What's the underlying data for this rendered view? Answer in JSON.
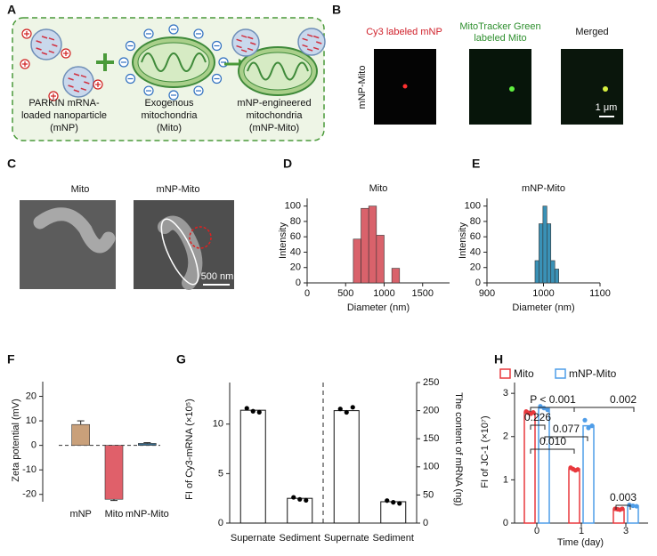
{
  "panel_labels": [
    "A",
    "B",
    "C",
    "D",
    "E",
    "F",
    "G",
    "H"
  ],
  "panel_a": {
    "nanoparticle": [
      "PARKIN mRNA-",
      "loaded nanoparticle",
      "(mNP)"
    ],
    "mitochondria": [
      "Exogenous",
      "mitochondria",
      "(Mito)"
    ],
    "engineered": [
      "mNP-engineered",
      "mitochondria",
      "(mNP-Mito)"
    ]
  },
  "panel_b": {
    "columns": [
      [
        "Cy3 labeled mNP"
      ],
      [
        "MitoTracker Green",
        "labeled Mito"
      ],
      [
        "Merged"
      ]
    ],
    "row_label": "mNP-Mito",
    "scale_bar": "1 μm"
  },
  "panel_c": {
    "columns": [
      "Mito",
      "mNP-Mito"
    ],
    "scale_bar": "500 nm"
  },
  "chart_data": [
    {
      "type": "histogram",
      "title": "Mito",
      "x_label": "Diameter (nm)",
      "y_label": "Intensity",
      "bins": [
        600,
        700,
        800,
        900,
        1000,
        1100,
        1200
      ],
      "counts": [
        57,
        97,
        100,
        62,
        0,
        19
      ],
      "color": "#d9626b",
      "xlim": [
        0,
        1850
      ],
      "xticks": [
        0,
        500,
        1000,
        1500
      ],
      "ylim": [
        0,
        110
      ],
      "yticks": [
        0,
        20,
        40,
        60,
        80,
        100
      ]
    },
    {
      "type": "histogram",
      "title": "mNP-Mito",
      "x_label": "Diameter (nm)",
      "y_label": "Intensity",
      "bins": [
        985,
        992,
        999,
        1006,
        1013,
        1020,
        1027
      ],
      "counts": [
        29,
        77,
        100,
        77,
        29,
        18
      ],
      "color": "#3a91b6",
      "xlim": [
        900,
        1100
      ],
      "xticks": [
        900,
        1000,
        1100
      ],
      "ylim": [
        0,
        110
      ],
      "yticks": [
        0,
        20,
        40,
        60,
        80,
        100
      ]
    },
    {
      "type": "bar",
      "y_label": "Zeta potential (mV)",
      "categories": [
        "mNP",
        "Mito",
        "mNP-Mito"
      ],
      "values": [
        8.5,
        -22,
        0.8
      ],
      "errors": [
        1.5,
        0.5,
        0.3
      ],
      "colors": [
        "#c9a07a",
        "#e0606a",
        "#3b6e8f"
      ],
      "ylim": [
        -23,
        26
      ],
      "yticks": [
        -20,
        -10,
        0,
        10,
        20
      ],
      "zero_line": "dashed"
    },
    {
      "type": "bar_points",
      "y_label": "FI of Cy3-mRNA (×10⁵)",
      "y2_label": "The content of mRNA (ng)",
      "categories": [
        "Supernate",
        "Sediment",
        "Supernate",
        "Sediment"
      ],
      "bar_fill": "#ffffff",
      "point_color": "#000000",
      "divider": "dashed",
      "series": [
        {
          "axis": "y",
          "values": [
            11.4,
            2.5,
            null,
            null
          ],
          "points": [
            [
              11.6,
              11.3,
              11.2
            ],
            [
              2.6,
              2.4,
              2.3
            ],
            null,
            null
          ]
        },
        {
          "axis": "y2",
          "values": [
            null,
            null,
            200,
            38
          ],
          "points": [
            null,
            null,
            [
              203,
              197,
              206
            ],
            [
              40,
              37,
              35
            ]
          ]
        }
      ],
      "ylim": [
        0,
        14.2
      ],
      "yticks": [
        0,
        5,
        10
      ],
      "y2lim": [
        0,
        250
      ],
      "y2ticks": [
        0,
        50,
        100,
        150,
        200,
        250
      ]
    },
    {
      "type": "grouped_bar_points",
      "x_label": "Time (day)",
      "y_label": "FI of JC-1 (×10⁷)",
      "categories": [
        "0",
        "1",
        "3"
      ],
      "legend": "top",
      "series": [
        {
          "name": "Mito",
          "color": "#e8383d",
          "values": [
            2.56,
            1.25,
            0.32
          ],
          "points": [
            [
              2.58,
              2.55,
              2.53,
              2.56
            ],
            [
              1.28,
              1.25,
              1.22,
              1.24
            ],
            [
              0.33,
              0.32,
              0.31,
              0.33
            ]
          ]
        },
        {
          "name": "mNP-Mito",
          "color": "#4f9de8",
          "values": [
            2.66,
            2.25,
            0.4
          ],
          "points": [
            [
              2.7,
              2.66,
              2.62
            ],
            [
              2.38,
              2.2,
              2.25
            ],
            [
              0.42,
              0.4,
              0.39
            ]
          ]
        }
      ],
      "ylim": [
        0,
        3.25
      ],
      "yticks": [
        0,
        1,
        2,
        3
      ],
      "annotations": [
        "P < 0.001",
        "0.226",
        "0.077",
        "0.010",
        "0.002",
        "0.003"
      ]
    }
  ]
}
